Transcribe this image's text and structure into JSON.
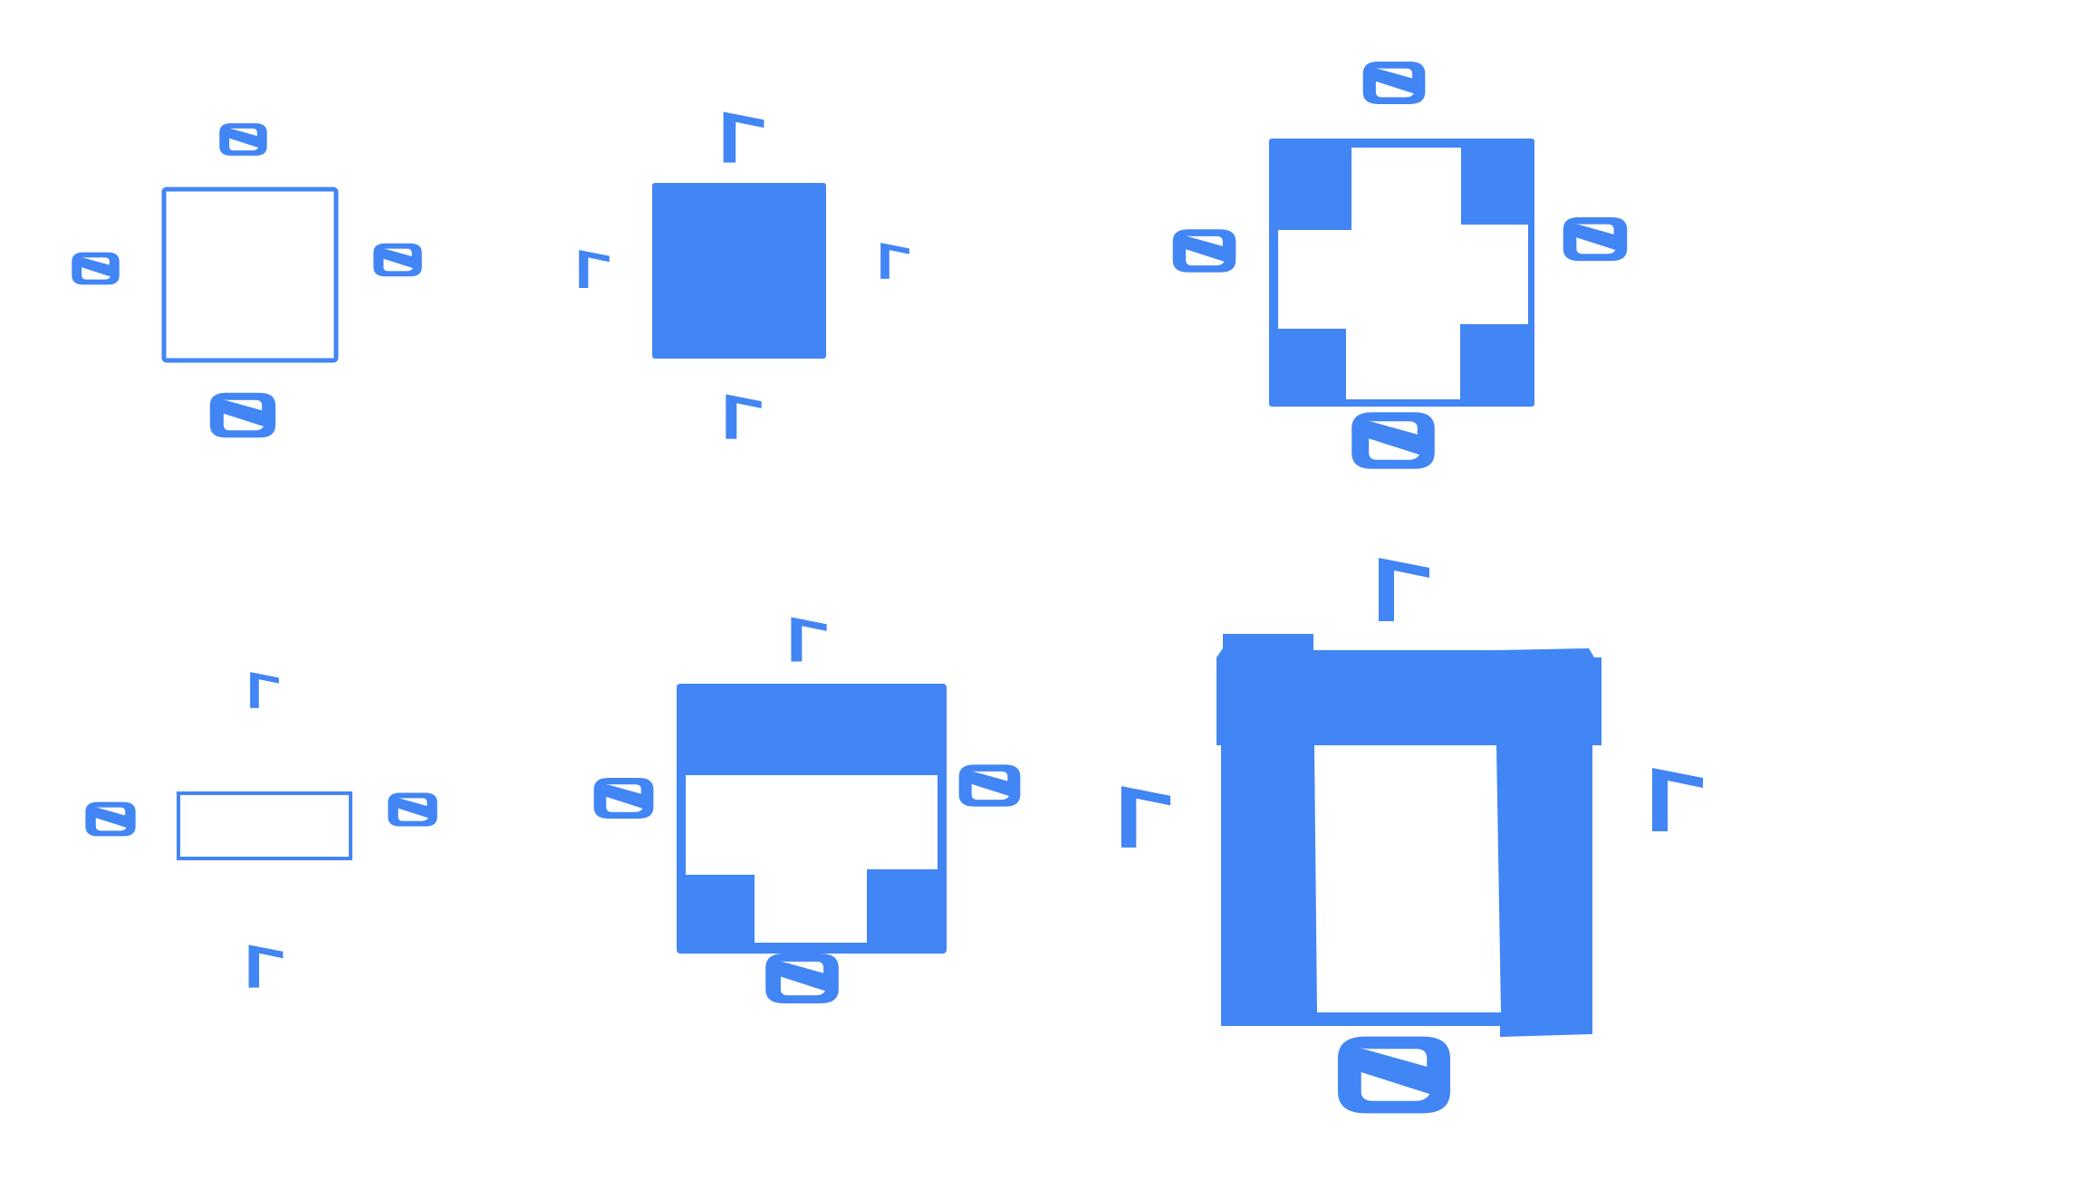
{
  "colors": {
    "accent": "#4285F4",
    "background": "#FFFFFF"
  },
  "glyphs": {
    "theta": "theta-mark-icon",
    "gamma": "gamma-mark-icon"
  },
  "figures": [
    {
      "name": "figure-1",
      "shape": "hollow square",
      "marks": {
        "top": "theta",
        "left": "theta",
        "right": "theta",
        "bottom": "theta"
      }
    },
    {
      "name": "figure-2",
      "shape": "solid square",
      "marks": {
        "top": "gamma",
        "left": "gamma",
        "right": "gamma",
        "bottom": "gamma"
      }
    },
    {
      "name": "figure-3",
      "shape": "square with corner blocks",
      "marks": {
        "top": "theta",
        "left": "theta",
        "right": "theta",
        "bottom": "theta"
      }
    },
    {
      "name": "figure-4",
      "shape": "hollow rectangle",
      "marks": {
        "top": "gamma",
        "left": "theta",
        "right": "theta",
        "bottom": "gamma"
      }
    },
    {
      "name": "figure-5",
      "shape": "rectangle with top band and bottom corner blocks",
      "marks": {
        "top": "gamma",
        "left": "theta",
        "right": "theta",
        "bottom": "theta"
      }
    },
    {
      "name": "figure-6",
      "shape": "thick frame",
      "marks": {
        "top": "gamma",
        "left": "gamma",
        "right": "gamma",
        "bottom": "theta"
      }
    }
  ]
}
